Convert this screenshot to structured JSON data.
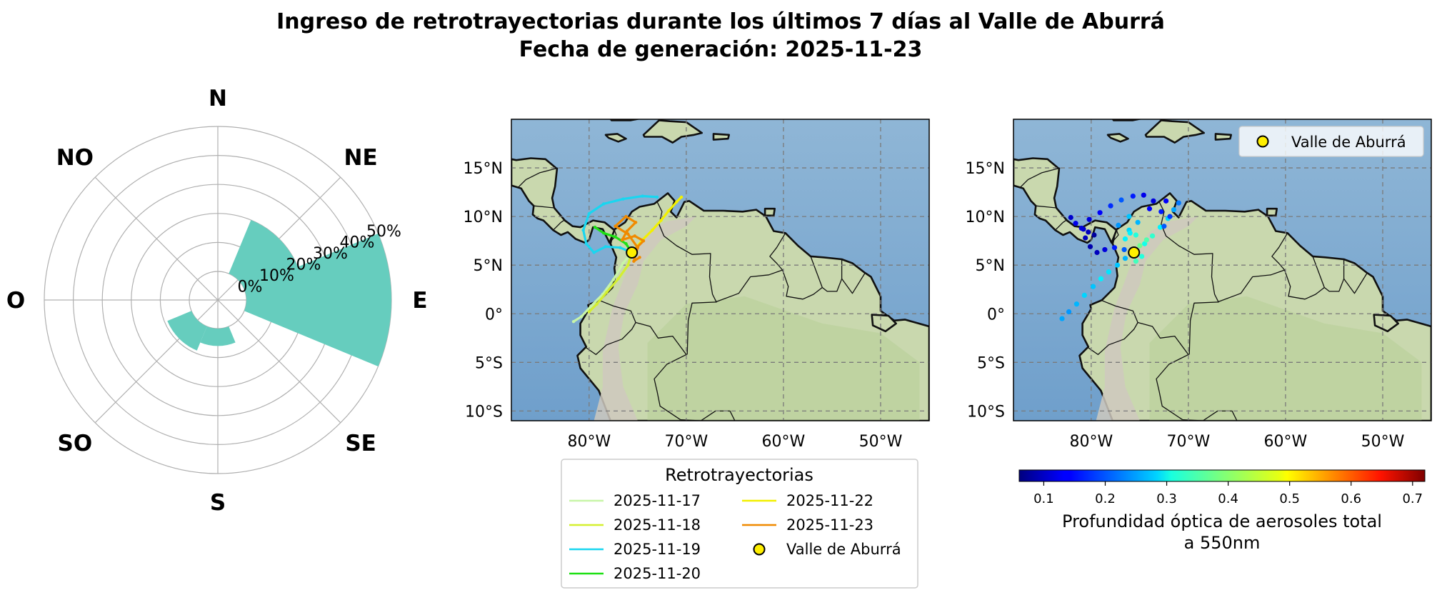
{
  "title": {
    "line1": "Ingreso de retrotrayectorias durante los últimos 7 días al Valle de Aburrá",
    "line2": "Fecha de generación: 2025-11-23"
  },
  "chart_data": [
    {
      "type": "polar-bar",
      "directions": [
        "N",
        "NE",
        "E",
        "SE",
        "S",
        "SO",
        "O",
        "NO"
      ],
      "radial_ticks": [
        "0%",
        "10%",
        "20%",
        "30%",
        "40%",
        "50%"
      ],
      "rmax": 50,
      "bar_color": "#66cdbe",
      "bars": [
        {
          "direction": "E",
          "value": 50
        },
        {
          "direction": "NE",
          "value": 20
        },
        {
          "direction": "SO",
          "value": 9
        },
        {
          "direction": "S",
          "value": 6
        }
      ]
    },
    {
      "type": "map",
      "lon_range": [
        -88,
        -45
      ],
      "lat_range": [
        -11,
        20
      ],
      "lon_ticks": [
        "80°W",
        "70°W",
        "60°W",
        "50°W"
      ],
      "lat_ticks": [
        "15°N",
        "10°N",
        "5°N",
        "0°",
        "5°S",
        "10°S"
      ],
      "location": {
        "name": "Valle de Aburrá",
        "lon": -75.6,
        "lat": 6.3
      },
      "legend_title": "Retrotrayectorias",
      "series": [
        {
          "name": "2025-11-17",
          "color": "#c8f5a8",
          "points": [
            [
              -75.6,
              6.3
            ],
            [
              -76.5,
              5.2
            ],
            [
              -77.5,
              3.5
            ],
            [
              -78.6,
              2.0
            ],
            [
              -79.8,
              0.8
            ],
            [
              -80.8,
              -0.3
            ],
            [
              -81.6,
              -0.8
            ]
          ]
        },
        {
          "name": "2025-11-18",
          "color": "#d4ef30",
          "points": [
            [
              -75.6,
              6.3
            ],
            [
              -76.0,
              5.0
            ],
            [
              -77.0,
              3.6
            ],
            [
              -78.2,
              2.2
            ],
            [
              -79.2,
              1.0
            ],
            [
              -80.0,
              0.2
            ]
          ]
        },
        {
          "name": "2025-11-19",
          "color": "#19d6f0",
          "points": [
            [
              -75.6,
              6.3
            ],
            [
              -76.8,
              6.8
            ],
            [
              -78.3,
              6.9
            ],
            [
              -79.5,
              6.3
            ],
            [
              -80.3,
              7.2
            ],
            [
              -80.6,
              8.6
            ],
            [
              -80.0,
              10.3
            ],
            [
              -78.5,
              11.3
            ],
            [
              -76.5,
              11.8
            ],
            [
              -74.5,
              12.1
            ],
            [
              -73.0,
              12.0
            ]
          ]
        },
        {
          "name": "2025-11-20",
          "color": "#1ee014",
          "points": [
            [
              -75.6,
              6.3
            ],
            [
              -76.2,
              7.2
            ],
            [
              -77.3,
              7.9
            ],
            [
              -78.5,
              8.3
            ],
            [
              -79.4,
              8.9
            ]
          ]
        },
        {
          "name": "2025-11-22",
          "color": "#f2f000",
          "points": [
            [
              -75.6,
              6.3
            ],
            [
              -74.5,
              7.6
            ],
            [
              -73.5,
              8.6
            ],
            [
              -72.6,
              9.6
            ],
            [
              -71.8,
              10.6
            ],
            [
              -71.0,
              11.5
            ],
            [
              -70.5,
              12.0
            ]
          ]
        },
        {
          "name": "2025-11-23",
          "color": "#f08a00",
          "points": [
            [
              -75.6,
              6.3
            ],
            [
              -75.0,
              6.9
            ],
            [
              -74.4,
              7.5
            ],
            [
              -75.3,
              8.0
            ],
            [
              -76.6,
              7.6
            ],
            [
              -76.1,
              8.5
            ],
            [
              -75.2,
              9.4
            ],
            [
              -76.2,
              10.0
            ],
            [
              -77.3,
              9.0
            ],
            [
              -76.0,
              8.2
            ],
            [
              -75.0,
              6.8
            ],
            [
              -75.4,
              5.4
            ],
            [
              -74.8,
              5.8
            ]
          ]
        }
      ]
    },
    {
      "type": "scatter-map",
      "lon_range": [
        -88,
        -45
      ],
      "lat_range": [
        -11,
        20
      ],
      "lon_ticks": [
        "80°W",
        "70°W",
        "60°W",
        "50°W"
      ],
      "lat_ticks": [
        "15°N",
        "10°N",
        "5°N",
        "0°",
        "5°S",
        "10°S"
      ],
      "location": {
        "name": "Valle de Aburrá",
        "lon": -75.6,
        "lat": 6.3
      },
      "legend_entry": "Valle de Aburrá",
      "colorbar": {
        "label_line1": "Profundidad óptica de aerosoles total",
        "label_line2": "a 550nm",
        "min": 0.06,
        "max": 0.72,
        "ticks": [
          "0.1",
          "0.2",
          "0.3",
          "0.4",
          "0.5",
          "0.6",
          "0.7"
        ],
        "colormap": "jet"
      },
      "points": [
        [
          -83.0,
          -0.5,
          0.25
        ],
        [
          -82.3,
          0.2,
          0.24
        ],
        [
          -81.5,
          1.0,
          0.26
        ],
        [
          -80.7,
          1.9,
          0.28
        ],
        [
          -79.8,
          2.8,
          0.27
        ],
        [
          -79.0,
          3.6,
          0.3
        ],
        [
          -78.2,
          4.3,
          0.29
        ],
        [
          -77.3,
          5.0,
          0.27
        ],
        [
          -76.5,
          5.7,
          0.26
        ],
        [
          -76.6,
          6.6,
          0.2
        ],
        [
          -77.6,
          6.8,
          0.16
        ],
        [
          -78.6,
          6.6,
          0.12
        ],
        [
          -79.4,
          6.3,
          0.1
        ],
        [
          -80.1,
          6.9,
          0.09
        ],
        [
          -80.6,
          7.8,
          0.1
        ],
        [
          -80.8,
          8.7,
          0.11
        ],
        [
          -80.2,
          9.7,
          0.12
        ],
        [
          -79.1,
          10.4,
          0.14
        ],
        [
          -78.0,
          11.1,
          0.17
        ],
        [
          -76.9,
          11.7,
          0.2
        ],
        [
          -75.7,
          12.1,
          0.16
        ],
        [
          -74.6,
          12.2,
          0.13
        ],
        [
          -79.7,
          8.1,
          0.08
        ],
        [
          -80.3,
          8.4,
          0.1
        ],
        [
          -81.0,
          8.8,
          0.12
        ],
        [
          -81.6,
          9.3,
          0.13
        ],
        [
          -82.1,
          9.9,
          0.11
        ],
        [
          -74.5,
          7.2,
          0.32
        ],
        [
          -73.7,
          8.0,
          0.34
        ],
        [
          -72.9,
          8.9,
          0.3
        ],
        [
          -72.1,
          9.8,
          0.28
        ],
        [
          -71.5,
          10.7,
          0.25
        ],
        [
          -71.0,
          11.4,
          0.22
        ],
        [
          -75.0,
          7.0,
          0.38
        ],
        [
          -74.3,
          7.6,
          0.36
        ],
        [
          -75.4,
          8.1,
          0.33
        ],
        [
          -76.5,
          7.7,
          0.3
        ],
        [
          -76.1,
          8.6,
          0.28
        ],
        [
          -75.2,
          9.4,
          0.26
        ],
        [
          -76.1,
          10.0,
          0.27
        ],
        [
          -77.2,
          9.1,
          0.24
        ],
        [
          -76.0,
          8.3,
          0.3
        ],
        [
          -75.4,
          5.4,
          0.35
        ],
        [
          -74.8,
          5.9,
          0.33
        ],
        [
          -72.5,
          9.0,
          0.2
        ],
        [
          -71.9,
          10.0,
          0.18
        ],
        [
          -72.8,
          10.5,
          0.16
        ],
        [
          -74.0,
          10.8,
          0.14
        ],
        [
          -73.6,
          11.6,
          0.12
        ],
        [
          -72.3,
          11.6,
          0.14
        ]
      ]
    }
  ]
}
